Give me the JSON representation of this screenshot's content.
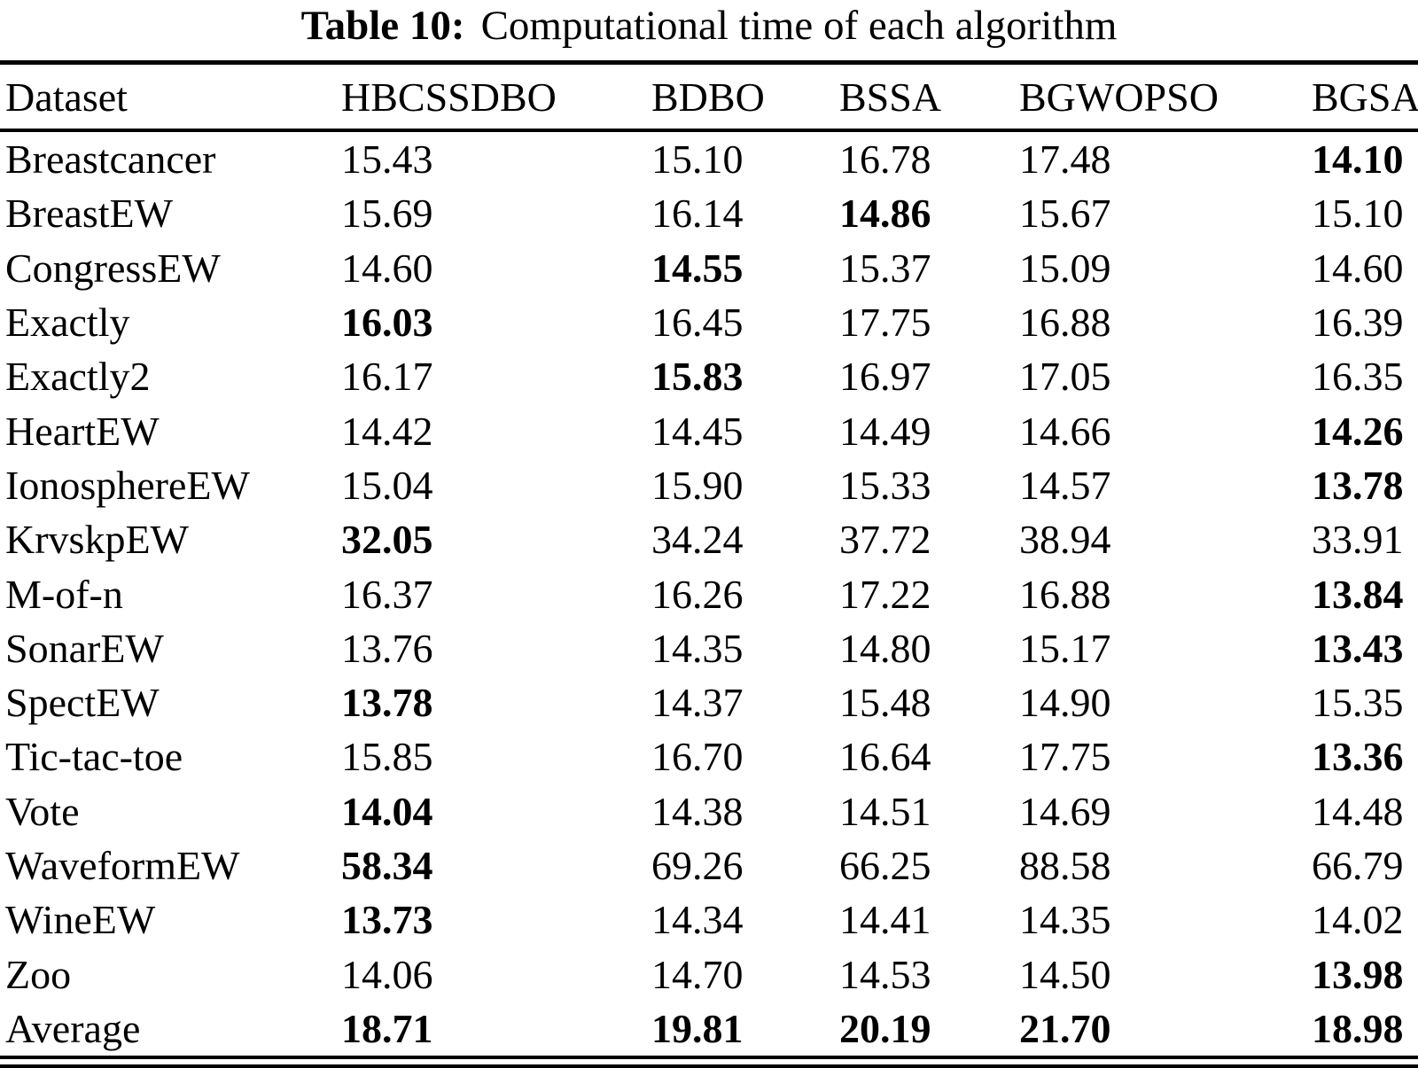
{
  "caption": {
    "label": "Table 10:",
    "text": "Computational time of each algorithm"
  },
  "table": {
    "columns": [
      "Dataset",
      "HBCSSDBO",
      "BDBO",
      "BSSA",
      "BGWOPSO",
      "BGSA"
    ],
    "rows": [
      {
        "dataset": "Breastcancer",
        "values": [
          "15.43",
          "15.10",
          "16.78",
          "17.48",
          "14.10"
        ],
        "bold": [
          4
        ]
      },
      {
        "dataset": "BreastEW",
        "values": [
          "15.69",
          "16.14",
          "14.86",
          "15.67",
          "15.10"
        ],
        "bold": [
          2
        ]
      },
      {
        "dataset": "CongressEW",
        "values": [
          "14.60",
          "14.55",
          "15.37",
          "15.09",
          "14.60"
        ],
        "bold": [
          1
        ]
      },
      {
        "dataset": "Exactly",
        "values": [
          "16.03",
          "16.45",
          "17.75",
          "16.88",
          "16.39"
        ],
        "bold": [
          0
        ]
      },
      {
        "dataset": "Exactly2",
        "values": [
          "16.17",
          "15.83",
          "16.97",
          "17.05",
          "16.35"
        ],
        "bold": [
          1
        ]
      },
      {
        "dataset": "HeartEW",
        "values": [
          "14.42",
          "14.45",
          "14.49",
          "14.66",
          "14.26"
        ],
        "bold": [
          4
        ]
      },
      {
        "dataset": "IonosphereEW",
        "values": [
          "15.04",
          "15.90",
          "15.33",
          "14.57",
          "13.78"
        ],
        "bold": [
          4
        ]
      },
      {
        "dataset": "KrvskpEW",
        "values": [
          "32.05",
          "34.24",
          "37.72",
          "38.94",
          "33.91"
        ],
        "bold": [
          0
        ]
      },
      {
        "dataset": "M-of-n",
        "values": [
          "16.37",
          "16.26",
          "17.22",
          "16.88",
          "13.84"
        ],
        "bold": [
          4
        ]
      },
      {
        "dataset": "SonarEW",
        "values": [
          "13.76",
          "14.35",
          "14.80",
          "15.17",
          "13.43"
        ],
        "bold": [
          4
        ]
      },
      {
        "dataset": "SpectEW",
        "values": [
          "13.78",
          "14.37",
          "15.48",
          "14.90",
          "15.35"
        ],
        "bold": [
          0
        ]
      },
      {
        "dataset": "Tic-tac-toe",
        "values": [
          "15.85",
          "16.70",
          "16.64",
          "17.75",
          "13.36"
        ],
        "bold": [
          4
        ]
      },
      {
        "dataset": "Vote",
        "values": [
          "14.04",
          "14.38",
          "14.51",
          "14.69",
          "14.48"
        ],
        "bold": [
          0
        ]
      },
      {
        "dataset": "WaveformEW",
        "values": [
          "58.34",
          "69.26",
          "66.25",
          "88.58",
          "66.79"
        ],
        "bold": [
          0
        ]
      },
      {
        "dataset": "WineEW",
        "values": [
          "13.73",
          "14.34",
          "14.41",
          "14.35",
          "14.02"
        ],
        "bold": [
          0
        ]
      },
      {
        "dataset": "Zoo",
        "values": [
          "14.06",
          "14.70",
          "14.53",
          "14.50",
          "13.98"
        ],
        "bold": [
          4
        ]
      },
      {
        "dataset": "Average",
        "values": [
          "18.71",
          "19.81",
          "20.19",
          "21.70",
          "18.98"
        ],
        "bold": [
          0,
          1,
          2,
          3,
          4
        ]
      }
    ]
  }
}
